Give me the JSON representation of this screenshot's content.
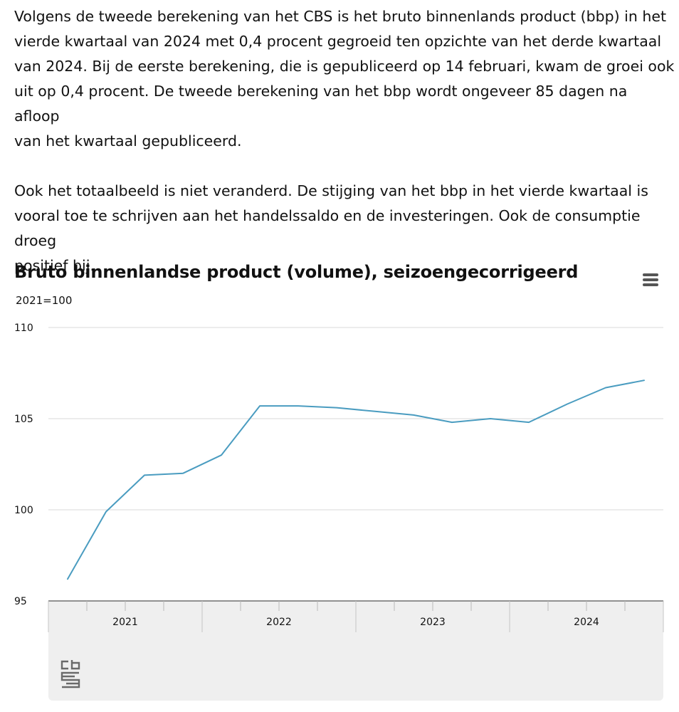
{
  "article": {
    "paragraphs": [
      "Volgens de tweede berekening van het CBS is het bruto binnenlands product (bbp) in het\nvierde kwartaal van 2024 met 0,4 procent gegroeid ten opzichte van het derde kwartaal\nvan 2024. Bij de eerste berekening, die is gepubliceerd op 14 februari, kwam de groei ook\nuit op 0,4 procent. De tweede berekening van het bbp wordt ongeveer 85 dagen na afloop\nvan het kwartaal gepubliceerd.",
      "Ook het totaalbeeld is niet veranderd. De stijging van het bbp in het vierde kwartaal is\nvooral toe te schrijven aan het handelssaldo en de investeringen. Ook de consumptie droeg\npositief bij."
    ]
  },
  "chart_data": {
    "type": "line",
    "title": "Bruto binnenlandse product (volume), seizoengecorrigeerd",
    "subtitle": "2021=100",
    "ylim": [
      95,
      110
    ],
    "yticks": [
      95,
      100,
      105,
      110
    ],
    "x": [
      "2021 Q1",
      "2021 Q2",
      "2021 Q3",
      "2021 Q4",
      "2022 Q1",
      "2022 Q2",
      "2022 Q3",
      "2022 Q4",
      "2023 Q1",
      "2023 Q2",
      "2023 Q3",
      "2023 Q4",
      "2024 Q1",
      "2024 Q2",
      "2024 Q3",
      "2024 Q4"
    ],
    "x_year_labels": [
      "2021",
      "2022",
      "2023",
      "2024"
    ],
    "series": [
      {
        "values": [
          96.2,
          99.9,
          101.9,
          102.0,
          103.0,
          105.7,
          105.7,
          105.6,
          105.4,
          105.2,
          104.8,
          105.0,
          104.8,
          105.8,
          106.7,
          107.1
        ]
      }
    ],
    "grid": true,
    "legend": "none"
  },
  "colors": {
    "line": "#4a9cc0",
    "grid": "#d8d8d8",
    "axis_band": "#efefef"
  },
  "toolbar": {
    "menu_icon": "hamburger-menu-icon"
  },
  "footer": {
    "logo": "cbs-logo"
  }
}
